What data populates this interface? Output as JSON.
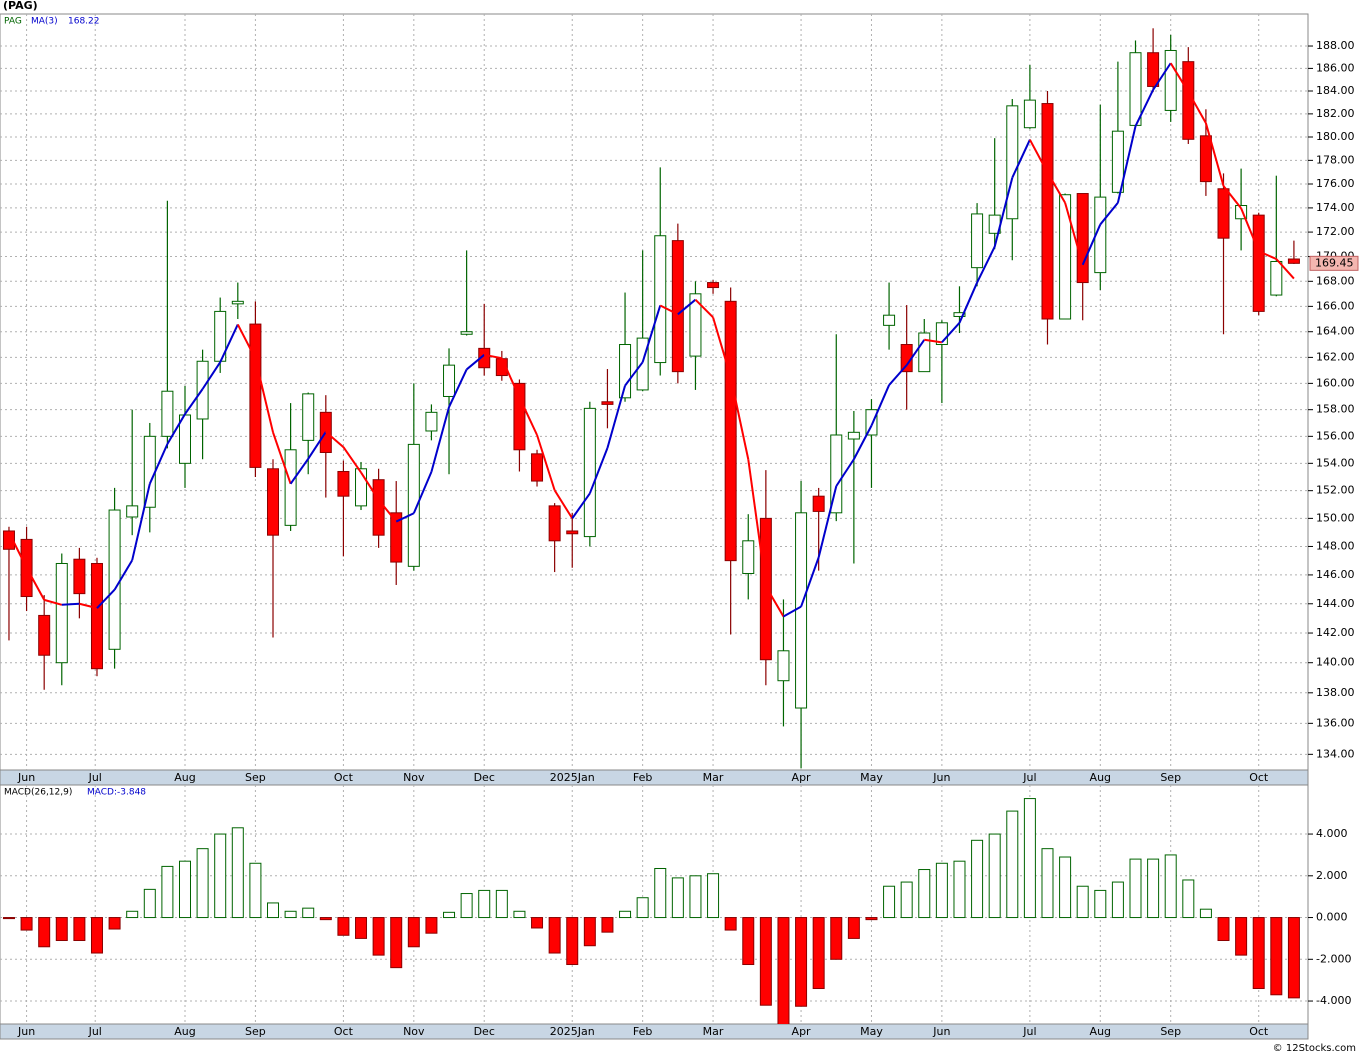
{
  "chart_data": [
    {
      "type": "candlestick",
      "title": "(PAG)",
      "symbol": "PAG",
      "log_scale": true,
      "grid": true,
      "up_color": "#006400",
      "down_color": "#ff0000",
      "down_edge": "#8b0000",
      "ma_name": "MA(3)",
      "ma_up_color": "#0000cc",
      "ma_down_color": "#ff0000",
      "last_color": "#f4b6b0",
      "xlim": [
        -0.51,
        73.8
      ],
      "ylim": [
        133.0,
        190.9
      ],
      "xticks": [
        {
          "value": 1,
          "label": "Jun"
        },
        {
          "value": 4.9,
          "label": "Jul"
        },
        {
          "value": 10,
          "label": "Aug"
        },
        {
          "value": 14,
          "label": "Sep"
        },
        {
          "value": 19,
          "label": "Oct"
        },
        {
          "value": 23,
          "label": "Nov"
        },
        {
          "value": 27,
          "label": "Dec"
        },
        {
          "value": 32,
          "label": "2025Jan"
        },
        {
          "value": 36,
          "label": "Feb"
        },
        {
          "value": 40,
          "label": "Mar"
        },
        {
          "value": 45,
          "label": "Apr"
        },
        {
          "value": 49,
          "label": "May"
        },
        {
          "value": 53,
          "label": "Jun"
        },
        {
          "value": 58,
          "label": "Jul"
        },
        {
          "value": 62,
          "label": "Aug"
        },
        {
          "value": 66,
          "label": "Sep"
        },
        {
          "value": 71,
          "label": "Oct"
        }
      ],
      "yticks": [
        {
          "value": 134,
          "label": "134.00"
        },
        {
          "value": 136,
          "label": "136.00"
        },
        {
          "value": 138,
          "label": "138.00"
        },
        {
          "value": 140,
          "label": "140.00"
        },
        {
          "value": 142,
          "label": "142.00"
        },
        {
          "value": 144,
          "label": "144.00"
        },
        {
          "value": 146,
          "label": "146.00"
        },
        {
          "value": 148,
          "label": "148.00"
        },
        {
          "value": 150,
          "label": "150.00"
        },
        {
          "value": 152,
          "label": "152.00"
        },
        {
          "value": 154,
          "label": "154.00"
        },
        {
          "value": 156,
          "label": "156.00"
        },
        {
          "value": 158,
          "label": "158.00"
        },
        {
          "value": 160,
          "label": "160.00"
        },
        {
          "value": 162,
          "label": "162.00"
        },
        {
          "value": 164,
          "label": "164.00"
        },
        {
          "value": 166,
          "label": "166.00"
        },
        {
          "value": 168,
          "label": "168.00"
        },
        {
          "value": 170,
          "label": "170.00"
        },
        {
          "value": 172,
          "label": "172.00"
        },
        {
          "value": 174,
          "label": "174.00"
        },
        {
          "value": 176,
          "label": "176.00"
        },
        {
          "value": 178,
          "label": "178.00"
        },
        {
          "value": 180,
          "label": "180.00"
        },
        {
          "value": 182,
          "label": "182.00"
        },
        {
          "value": 184,
          "label": "184.00"
        },
        {
          "value": 186,
          "label": "186.00"
        },
        {
          "value": 188,
          "label": "188.00"
        }
      ],
      "open": [
        149.1,
        148.5,
        143.2,
        140.0,
        147.1,
        146.8,
        140.9,
        150.1,
        150.8,
        156.0,
        154.0,
        157.3,
        161.7,
        166.2,
        164.6,
        153.6,
        149.5,
        155.7,
        157.8,
        153.4,
        150.9,
        152.8,
        150.4,
        146.6,
        156.4,
        159.0,
        163.8,
        162.7,
        161.9,
        160.0,
        154.7,
        150.9,
        149.1,
        148.7,
        158.6,
        158.9,
        159.5,
        161.6,
        171.3,
        162.1,
        167.9,
        166.4,
        146.1,
        150.0,
        138.8,
        137.0,
        151.6,
        150.4,
        155.8,
        156.1,
        164.5,
        163.0,
        160.9,
        163.0,
        165.2,
        169.1,
        171.9,
        173.1,
        180.8,
        182.9,
        165.0,
        175.2,
        168.7,
        175.3,
        181.0,
        187.4,
        182.3,
        186.6,
        180.1,
        175.6,
        173.1,
        173.4,
        166.9,
        169.8
      ],
      "high": [
        149.4,
        149.4,
        144.6,
        147.5,
        147.9,
        147.2,
        152.2,
        158.0,
        157.0,
        174.6,
        159.8,
        162.6,
        166.7,
        167.9,
        166.4,
        154.3,
        158.5,
        159.3,
        159.1,
        154.2,
        154.1,
        153.6,
        152.7,
        160.0,
        158.4,
        162.7,
        170.5,
        166.2,
        162.5,
        160.3,
        155.0,
        151.1,
        150.4,
        158.6,
        161.1,
        167.1,
        170.5,
        177.4,
        172.7,
        168.0,
        168.1,
        167.5,
        150.3,
        153.5,
        144.3,
        152.7,
        152.2,
        163.8,
        157.9,
        158.8,
        167.9,
        166.1,
        165.0,
        164.9,
        167.6,
        174.4,
        179.9,
        183.3,
        186.3,
        184.0,
        175.2,
        175.2,
        182.8,
        186.6,
        188.5,
        189.6,
        189.0,
        187.9,
        182.4,
        176.9,
        177.3,
        173.6,
        176.7,
        171.3
      ],
      "low": [
        141.5,
        143.5,
        138.2,
        138.5,
        143.0,
        139.1,
        139.6,
        148.8,
        149.0,
        155.1,
        152.2,
        154.3,
        160.8,
        165.0,
        153.0,
        141.7,
        149.1,
        153.2,
        151.5,
        147.3,
        150.6,
        147.9,
        145.3,
        146.3,
        155.7,
        153.2,
        163.7,
        160.6,
        160.2,
        153.4,
        152.3,
        146.2,
        146.5,
        148.0,
        156.6,
        158.6,
        159.4,
        160.6,
        160.0,
        159.5,
        167.0,
        141.9,
        144.3,
        138.5,
        135.8,
        133.1,
        146.3,
        149.8,
        146.8,
        152.2,
        162.6,
        158.0,
        160.9,
        158.5,
        163.9,
        167.6,
        170.6,
        169.7,
        180.7,
        163.0,
        165.0,
        164.9,
        167.3,
        175.2,
        180.9,
        183.9,
        181.3,
        179.4,
        175.0,
        163.8,
        170.5,
        165.3,
        166.8,
        169.4
      ],
      "close": [
        147.8,
        144.5,
        140.5,
        146.8,
        144.7,
        139.6,
        150.6,
        150.9,
        156.0,
        159.4,
        157.6,
        161.7,
        165.6,
        166.4,
        153.7,
        148.8,
        155.0,
        159.2,
        154.8,
        151.6,
        153.6,
        148.8,
        146.9,
        155.4,
        157.8,
        161.4,
        164.0,
        161.2,
        160.6,
        155.0,
        152.7,
        148.4,
        148.9,
        158.1,
        158.4,
        163.0,
        163.5,
        171.7,
        160.9,
        167.0,
        167.5,
        147.0,
        148.4,
        140.2,
        140.8,
        150.4,
        150.5,
        156.1,
        156.3,
        158.0,
        165.3,
        160.9,
        163.9,
        164.7,
        165.5,
        173.5,
        173.4,
        182.7,
        183.2,
        165.0,
        175.1,
        167.9,
        174.9,
        180.5,
        187.4,
        184.4,
        187.6,
        179.8,
        176.2,
        171.5,
        174.2,
        165.6,
        169.6,
        169.45
      ],
      "ma": [
        149.0,
        146.5,
        144.27,
        143.93,
        144,
        143.7,
        144.97,
        147.03,
        152.5,
        155.43,
        157.67,
        159.57,
        161.63,
        164.57,
        161.9,
        156.3,
        152.5,
        154.33,
        156.33,
        155.2,
        153.33,
        151.33,
        149.77,
        150.37,
        153.37,
        158.2,
        161.07,
        162.2,
        161.93,
        158.93,
        156.1,
        152.03,
        150,
        151.8,
        155.13,
        159.83,
        161.63,
        166.07,
        165.37,
        166.53,
        165.13,
        160.5,
        154.3,
        145.2,
        143.13,
        143.8,
        147.23,
        152.33,
        154.3,
        156.8,
        159.87,
        161.4,
        163.37,
        163.17,
        164.7,
        167.9,
        170.8,
        176.53,
        179.77,
        176.97,
        174.43,
        169.33,
        172.63,
        174.43,
        180.93,
        184.1,
        186.47,
        183.93,
        181.2,
        175.83,
        173.97,
        170.43,
        169.8,
        168.22
      ]
    },
    {
      "type": "bar",
      "title": "MACD(26,12,9)",
      "indicator_label": "MACD:-3.848",
      "grid": true,
      "up_color": "#006400",
      "down_color": "#ff0000",
      "down_edge": "#8b0000",
      "xlim": [
        -0.51,
        73.8
      ],
      "ylim": [
        -5.1,
        6.35
      ],
      "yticks": [
        {
          "value": -4,
          "label": "-4.000"
        },
        {
          "value": -2,
          "label": "-2.000"
        },
        {
          "value": 0,
          "label": "0.000"
        },
        {
          "value": 2,
          "label": "2.000"
        },
        {
          "value": 4,
          "label": "4.000"
        }
      ],
      "values": [
        -0.05,
        -0.6,
        -1.4,
        -1.1,
        -1.1,
        -1.7,
        -0.55,
        0.3,
        1.35,
        2.45,
        2.7,
        3.3,
        4.0,
        4.3,
        2.6,
        0.7,
        0.3,
        0.45,
        -0.1,
        -0.85,
        -1.0,
        -1.8,
        -2.4,
        -1.4,
        -0.75,
        0.25,
        1.15,
        1.3,
        1.3,
        0.3,
        -0.5,
        -1.7,
        -2.25,
        -1.35,
        -0.7,
        0.3,
        0.95,
        2.35,
        1.9,
        2.0,
        2.1,
        -0.6,
        -2.25,
        -4.2,
        -5.15,
        -4.25,
        -3.4,
        -2.0,
        -1.0,
        -0.1,
        1.5,
        1.7,
        2.3,
        2.6,
        2.7,
        3.7,
        4.0,
        5.1,
        5.7,
        3.3,
        2.9,
        1.5,
        1.3,
        1.7,
        2.8,
        2.8,
        3.0,
        1.8,
        0.4,
        -1.1,
        -1.8,
        -3.4,
        -3.7,
        -3.848
      ]
    }
  ],
  "footer": "© 12Stocks.com"
}
